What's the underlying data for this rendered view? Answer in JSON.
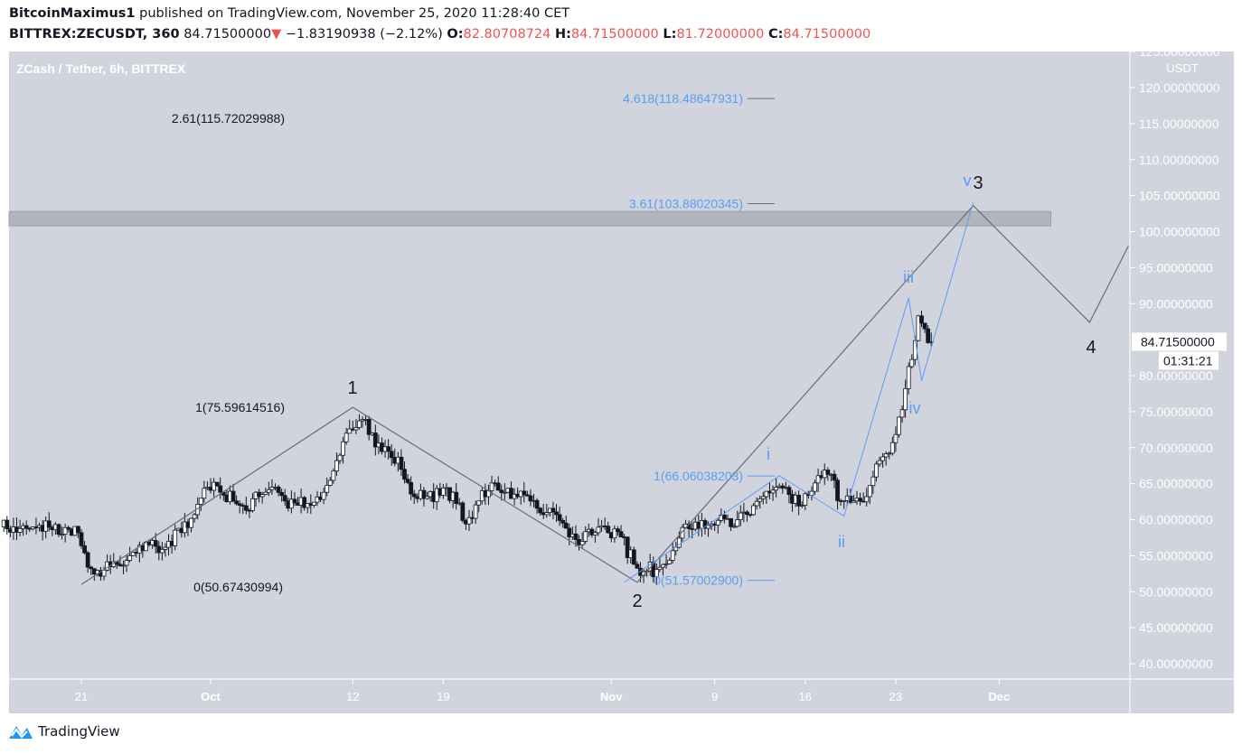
{
  "header": {
    "author": "BitcoinMaximus1",
    "published": " published on TradingView.com, November 25, 2020 11:28:40 CET",
    "symbol": "BITTREX:ZECUSDT, 360",
    "last": "84.71500000",
    "change": "−1.83190938 (−2.12%)",
    "o_label": "O:",
    "o": "82.80708724",
    "h_label": "H:",
    "h": "84.71500000",
    "l_label": "L:",
    "l": "81.72000000",
    "c_label": "C:",
    "c": "84.71500000"
  },
  "colors": {
    "background": "#d1d4dc",
    "up": "#ffffff",
    "down": "#131722",
    "wave": "#6a6d78",
    "subwave": "#5b9cf6",
    "axis_text": "#ffffff",
    "change": "#ef5350"
  },
  "footer": {
    "brand": "TradingView",
    "icon": "tradingview-logo-icon"
  },
  "chart_data": {
    "type": "candlestick",
    "title": "ZCash / Tether, 6h, BITTREX",
    "y_unit": "USDT",
    "ylim": [
      40,
      125
    ],
    "xlim": [
      "2020-09-15",
      "2020-12-11"
    ],
    "y_ticks": [
      "125.00000000",
      "120.00000000",
      "115.00000000",
      "110.00000000",
      "105.00000000",
      "100.00000000",
      "95.00000000",
      "90.00000000",
      "80.00000000",
      "75.00000000",
      "70.00000000",
      "65.00000000",
      "60.00000000",
      "55.00000000",
      "50.00000000",
      "45.00000000",
      "40.00000000"
    ],
    "y_tick_values": [
      125,
      120,
      115,
      110,
      105,
      100,
      95,
      90,
      80,
      75,
      70,
      65,
      60,
      55,
      50,
      45,
      40
    ],
    "x_ticks": [
      {
        "label": "21",
        "date": "2020-09-21"
      },
      {
        "label": "Oct",
        "date": "2020-10-01"
      },
      {
        "label": "12",
        "date": "2020-10-12"
      },
      {
        "label": "19",
        "date": "2020-10-19"
      },
      {
        "label": "Nov",
        "date": "2020-11-01"
      },
      {
        "label": "9",
        "date": "2020-11-09"
      },
      {
        "label": "16",
        "date": "2020-11-16"
      },
      {
        "label": "23",
        "date": "2020-11-23"
      },
      {
        "label": "Dec",
        "date": "2020-12-01"
      }
    ],
    "last_price": {
      "label": "84.71500000",
      "value": 84.715,
      "countdown": "01:31:21"
    },
    "daily_closes_start": "2020-09-15",
    "daily_closes": [
      59.0,
      58.8,
      59.2,
      58.6,
      58.9,
      58.2,
      53.2,
      53.0,
      53.8,
      55.0,
      55.7,
      56.3,
      57.0,
      58.2,
      60.7,
      64.5,
      63.8,
      62.6,
      61.3,
      63.2,
      64.5,
      62.6,
      62.0,
      62.0,
      63.8,
      68.2,
      72.6,
      73.9,
      70.1,
      69.5,
      67.0,
      63.2,
      63.2,
      63.4,
      63.8,
      59.4,
      62.6,
      65.1,
      63.8,
      63.2,
      62.6,
      60.7,
      60.7,
      57.6,
      57.0,
      58.2,
      58.2,
      57.6,
      53.8,
      52.9,
      53.4,
      55.7,
      59.4,
      58.8,
      59.4,
      60.1,
      60.0,
      60.7,
      63.2,
      64.5,
      63.5,
      62.0,
      65.1,
      66.3,
      62.6,
      62.6,
      63.2,
      68.2,
      70.7,
      78.2,
      88.3,
      84.7
    ],
    "resistance_zone": {
      "from": "2020-09-15",
      "to": "2020-12-05",
      "low": 100.8,
      "high": 102.8
    },
    "wave_main": [
      [
        "2020-09-21",
        51.0
      ],
      [
        "2020-10-12",
        75.6
      ],
      [
        "2020-11-03",
        51.3
      ],
      [
        "2020-11-29",
        103.6
      ],
      [
        "2020-12-08",
        87.4
      ],
      [
        "2020-12-11",
        98.0
      ]
    ],
    "wave_sub": [
      [
        "2020-11-02",
        51.3
      ],
      [
        "2020-11-14",
        66.1
      ],
      [
        "2020-11-19",
        60.5
      ],
      [
        "2020-11-24",
        90.8
      ],
      [
        "2020-11-25",
        79.3
      ],
      [
        "2020-11-29",
        104.0
      ]
    ],
    "wave_labels_main": [
      "1",
      "2",
      "3",
      "4"
    ],
    "wave_labels_sub": [
      "i",
      "ii",
      "iii",
      "iv",
      "v"
    ],
    "fib_labels": [
      {
        "text": "4.618(118.48647931)",
        "color": "blue",
        "price": 118.486
      },
      {
        "text": "3.61(103.88020345)",
        "color": "blue",
        "price": 103.88
      },
      {
        "text": "2.61(115.72029988)",
        "color": "black",
        "price": 115.72
      },
      {
        "text": "1(75.59614516)",
        "color": "black",
        "price": 75.596
      },
      {
        "text": "0(50.67430994)",
        "color": "black",
        "price": 50.674
      },
      {
        "text": "1(66.06038203)",
        "color": "blue",
        "price": 66.06
      },
      {
        "text": "0(51.57002900)",
        "color": "blue",
        "price": 51.57
      }
    ]
  }
}
